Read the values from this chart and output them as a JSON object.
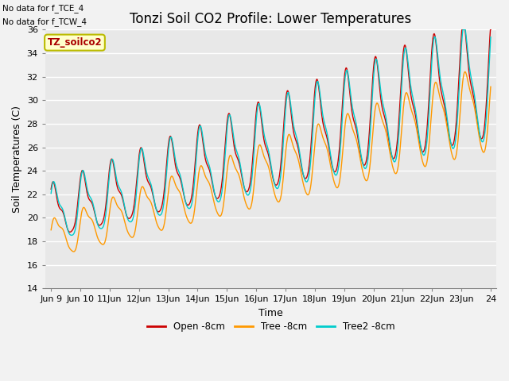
{
  "title": "Tonzi Soil CO2 Profile: Lower Temperatures",
  "xlabel": "Time",
  "ylabel": "Soil Temperatures (C)",
  "ylim": [
    14,
    36
  ],
  "annotation1": "No data for f_TCE_4",
  "annotation2": "No data for f_TCW_4",
  "legend_box_label": "TZ_soilco2",
  "line_colors": {
    "open": "#cc0000",
    "tree": "#ff9900",
    "tree2": "#00cccc"
  },
  "legend_labels": [
    "Open -8cm",
    "Tree -8cm",
    "Tree2 -8cm"
  ],
  "background_color": "#e8e8e8",
  "grid_color": "#ffffff",
  "title_fontsize": 12,
  "axis_label_fontsize": 9,
  "tick_fontsize": 8
}
